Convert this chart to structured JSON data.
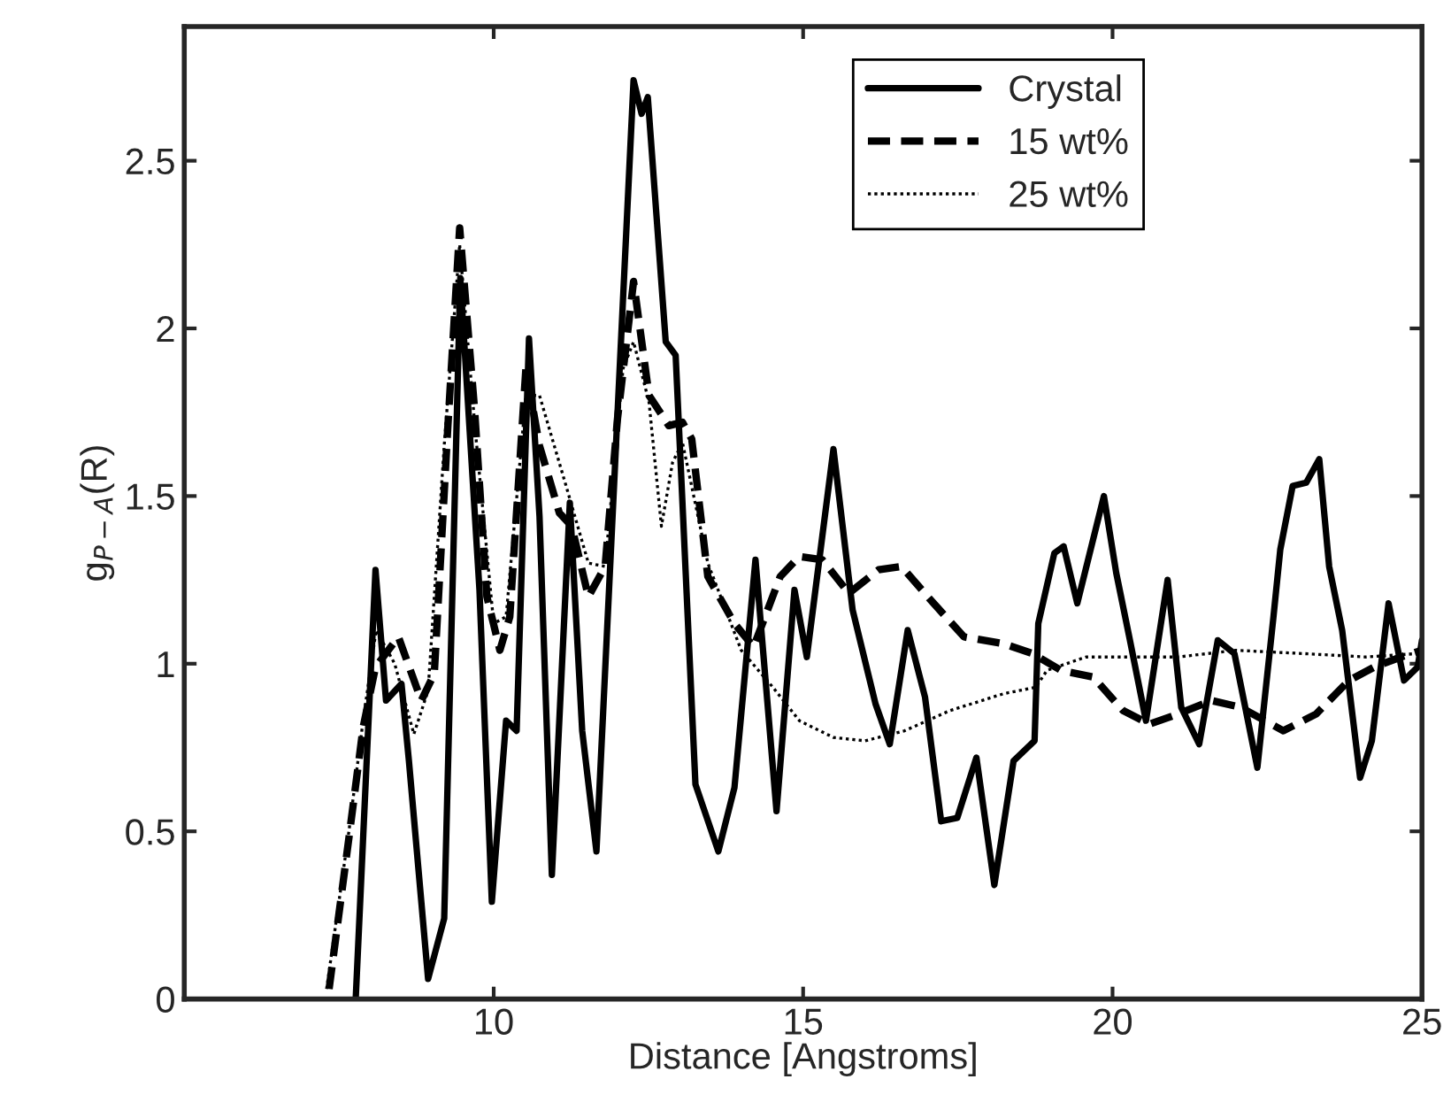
{
  "chart_data": {
    "type": "line",
    "xlabel": "Distance [Angstroms]",
    "ylabel": "g$_{P−A}$(R)",
    "xlim": [
      5,
      25
    ],
    "ylim": [
      0,
      2.9
    ],
    "xticks": [
      10,
      15,
      20,
      25
    ],
    "yticks": [
      0,
      0.5,
      1,
      1.5,
      2,
      2.5
    ],
    "grid": false,
    "legend": "top right",
    "marker": "none",
    "series": [
      {
        "name": "Crystal",
        "color": "#000000",
        "line_style": "solid",
        "x": [
          7.77,
          8.09,
          8.26,
          8.51,
          8.63,
          8.94,
          9.2,
          9.46,
          9.77,
          9.97,
          10.2,
          10.37,
          10.57,
          10.74,
          10.94,
          11.23,
          11.43,
          11.66,
          12.26,
          12.39,
          12.49,
          12.78,
          12.94,
          13.26,
          13.63,
          13.89,
          14.23,
          14.57,
          14.86,
          15.06,
          15.49,
          15.8,
          16.17,
          16.4,
          16.69,
          16.97,
          17.23,
          17.49,
          17.8,
          18.09,
          18.4,
          18.74,
          18.8,
          19.06,
          19.21,
          19.43,
          19.86,
          20.06,
          20.27,
          20.54,
          20.89,
          21.11,
          21.4,
          21.7,
          21.97,
          22.34,
          22.6,
          22.71,
          22.91,
          23.13,
          23.34,
          23.5,
          23.71,
          24.0,
          24.19,
          24.46,
          24.71,
          24.93,
          25
        ],
        "values": [
          0,
          1.28,
          0.89,
          0.94,
          0.71,
          0.06,
          0.24,
          2.15,
          1.22,
          0.29,
          0.83,
          0.8,
          1.97,
          1.44,
          0.37,
          1.48,
          0.8,
          0.44,
          2.74,
          2.64,
          2.69,
          1.96,
          1.92,
          0.64,
          0.44,
          0.63,
          1.31,
          0.56,
          1.22,
          1.02,
          1.64,
          1.16,
          0.88,
          0.76,
          1.1,
          0.9,
          0.53,
          0.54,
          0.72,
          0.34,
          0.71,
          0.77,
          1.12,
          1.33,
          1.35,
          1.18,
          1.5,
          1.27,
          1.08,
          0.83,
          1.25,
          0.87,
          0.76,
          1.07,
          1.03,
          0.69,
          1.14,
          1.34,
          1.53,
          1.54,
          1.61,
          1.29,
          1.1,
          0.66,
          0.77,
          1.18,
          0.95,
          0.99,
          1.07
        ]
      },
      {
        "name": "15 wt%",
        "color": "#000000",
        "line_style": "dashed",
        "x": [
          7.34,
          7.66,
          7.89,
          8.09,
          8.46,
          8.83,
          9.04,
          9.26,
          9.45,
          9.69,
          9.89,
          10.1,
          10.26,
          10.52,
          10.74,
          11.06,
          11.26,
          11.53,
          11.8,
          12.0,
          12.26,
          12.51,
          12.83,
          13.05,
          13.2,
          13.46,
          13.89,
          14.2,
          14.63,
          14.94,
          15.31,
          15.74,
          16.22,
          16.59,
          17.06,
          17.6,
          18.23,
          18.71,
          19.17,
          19.69,
          20.17,
          20.6,
          21.06,
          21.6,
          22.07,
          22.76,
          23.29,
          23.82,
          24.23,
          24.66,
          25
        ],
        "values": [
          0.03,
          0.48,
          0.81,
          0.99,
          1.08,
          0.89,
          0.97,
          1.71,
          2.3,
          1.76,
          1.2,
          1.04,
          1.14,
          1.88,
          1.65,
          1.45,
          1.41,
          1.2,
          1.29,
          1.73,
          2.14,
          1.8,
          1.71,
          1.72,
          1.67,
          1.26,
          1.12,
          1.05,
          1.26,
          1.32,
          1.31,
          1.21,
          1.28,
          1.29,
          1.19,
          1.08,
          1.06,
          1.03,
          0.98,
          0.96,
          0.86,
          0.82,
          0.85,
          0.89,
          0.87,
          0.8,
          0.85,
          0.95,
          0.99,
          1.02,
          1.04
        ]
      },
      {
        "name": "25 wt%",
        "color": "#000000",
        "line_style": "dotted",
        "x": [
          7.3,
          7.66,
          7.89,
          8.1,
          8.4,
          8.71,
          8.94,
          9.2,
          9.45,
          9.7,
          10.0,
          10.2,
          10.52,
          10.74,
          11.17,
          11.53,
          11.8,
          12.09,
          12.26,
          12.51,
          12.71,
          12.89,
          13.05,
          13.46,
          14.0,
          14.51,
          14.94,
          15.49,
          16.0,
          16.64,
          17.37,
          18.23,
          18.76,
          18.94,
          19.57,
          20.43,
          21.06,
          21.99,
          23.1,
          24.1,
          24.9
        ],
        "values": [
          0.03,
          0.5,
          0.83,
          1.1,
          1.0,
          0.79,
          0.92,
          1.65,
          2.25,
          1.7,
          1.12,
          1.14,
          1.8,
          1.8,
          1.53,
          1.3,
          1.29,
          1.88,
          1.96,
          1.78,
          1.41,
          1.6,
          1.66,
          1.3,
          1.04,
          0.93,
          0.83,
          0.78,
          0.77,
          0.8,
          0.86,
          0.91,
          0.93,
          0.98,
          1.02,
          1.02,
          1.02,
          1.04,
          1.03,
          1.02,
          1.03
        ]
      }
    ]
  }
}
